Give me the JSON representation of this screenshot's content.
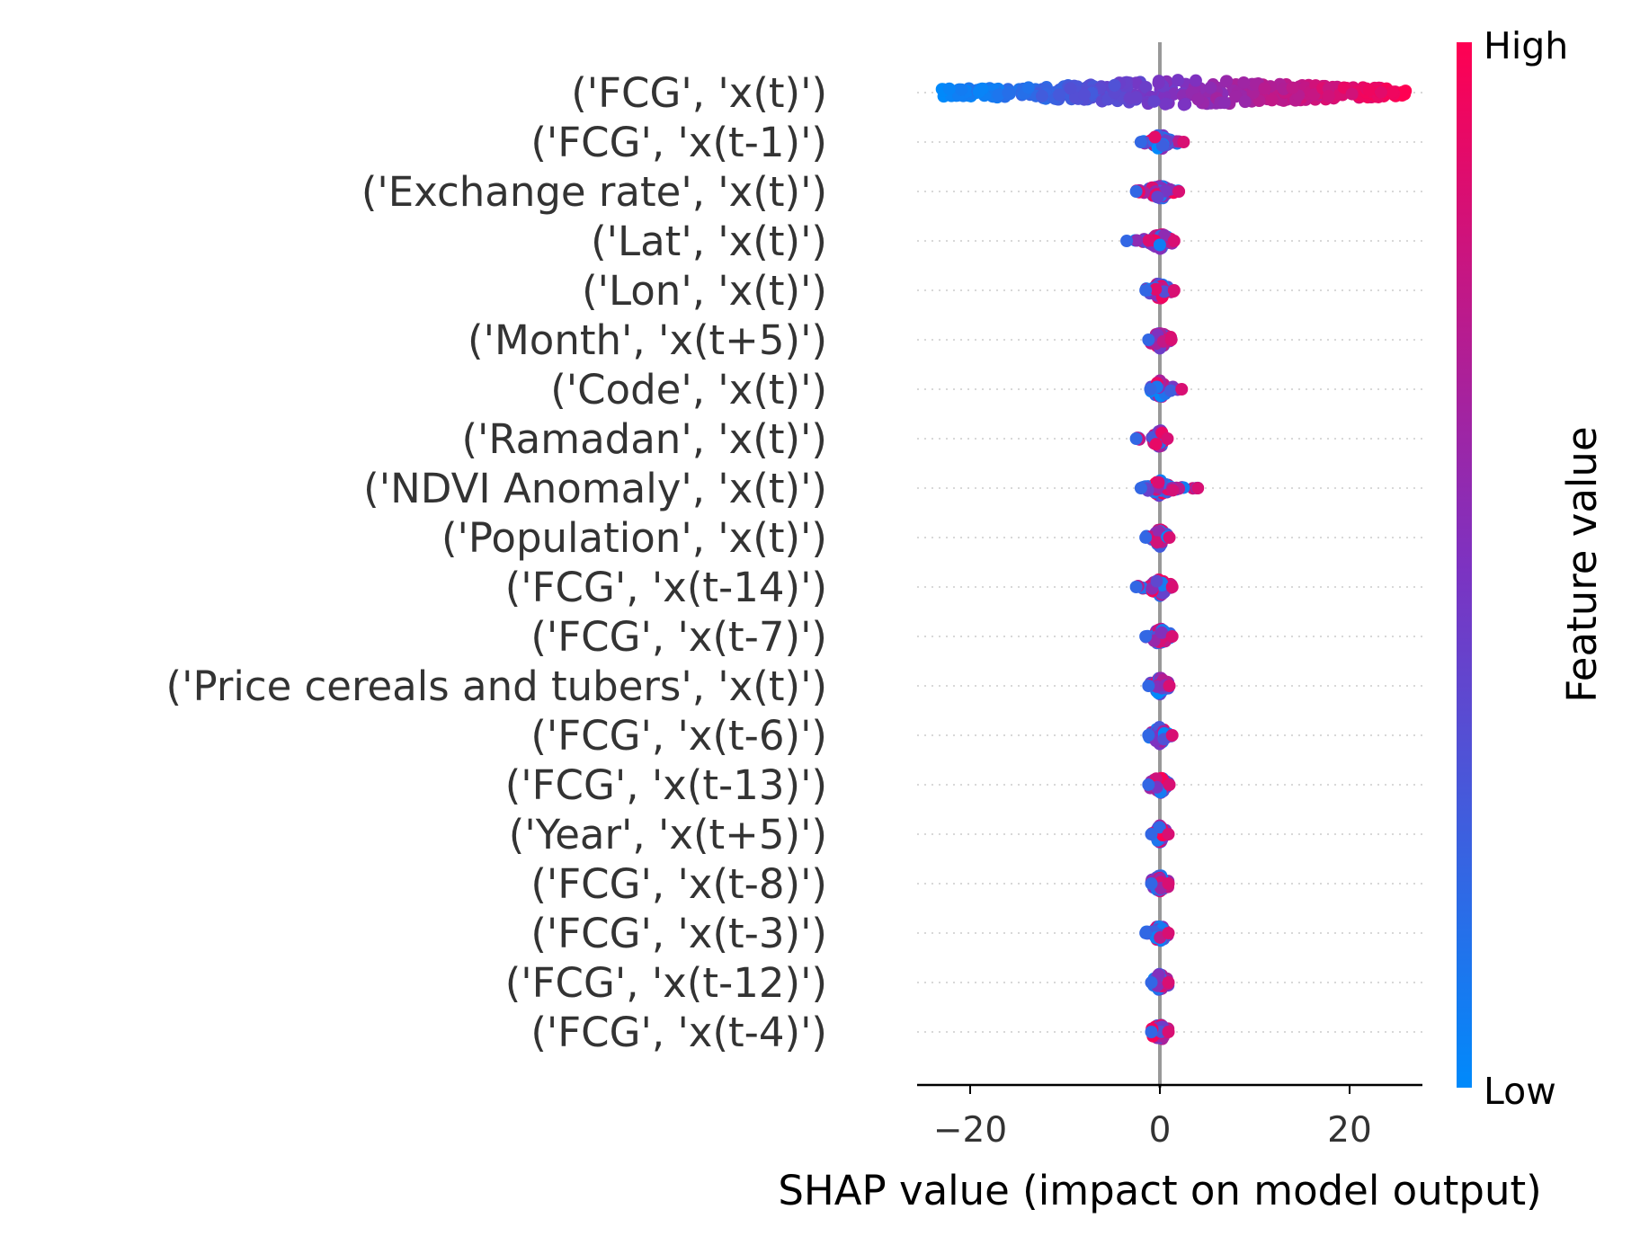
{
  "chart_data": {
    "type": "scatter",
    "subtype": "shap-beeswarm",
    "xlabel": "SHAP value (impact on model output)",
    "xlim": [
      -25.5,
      28
    ],
    "xticks": [
      -20,
      0,
      20
    ],
    "xtick_labels": [
      "−20",
      "0",
      "20"
    ],
    "features": [
      {
        "name": "('FCG', 'x(t)')",
        "min": -23,
        "max": 26
      },
      {
        "name": "('FCG', 'x(t-1)')",
        "min": -2,
        "max": 2.5
      },
      {
        "name": "('Exchange rate', 'x(t)')",
        "min": -2.5,
        "max": 2
      },
      {
        "name": "('Lat', 'x(t)')",
        "min": -3.5,
        "max": 1.5
      },
      {
        "name": "('Lon', 'x(t)')",
        "min": -1.5,
        "max": 1.5
      },
      {
        "name": "('Month', 'x(t+5)')",
        "min": -1.2,
        "max": 1.2
      },
      {
        "name": "('Code', 'x(t)')",
        "min": -1,
        "max": 2.3
      },
      {
        "name": "('Ramadan', 'x(t)')",
        "min": -2.5,
        "max": 0.8
      },
      {
        "name": "('NDVI Anomaly', 'x(t)')",
        "min": -2,
        "max": 4
      },
      {
        "name": "('Population', 'x(t)')",
        "min": -1.5,
        "max": 1
      },
      {
        "name": "('FCG', 'x(t-14)')",
        "min": -2.5,
        "max": 1.3
      },
      {
        "name": "('FCG', 'x(t-7)')",
        "min": -1.5,
        "max": 1.3
      },
      {
        "name": "('Price cereals and tubers', 'x(t)')",
        "min": -1.2,
        "max": 1
      },
      {
        "name": "('FCG', 'x(t-6)')",
        "min": -1.2,
        "max": 1.3
      },
      {
        "name": "('FCG', 'x(t-13)')",
        "min": -1.2,
        "max": 1
      },
      {
        "name": "('Year', 'x(t+5)')",
        "min": -0.9,
        "max": 0.9
      },
      {
        "name": "('FCG', 'x(t-8)')",
        "min": -0.9,
        "max": 0.9
      },
      {
        "name": "('FCG', 'x(t-3)')",
        "min": -1.5,
        "max": 0.9
      },
      {
        "name": "('FCG', 'x(t-12)')",
        "min": -0.9,
        "max": 0.9
      },
      {
        "name": "('FCG', 'x(t-4)')",
        "min": -0.9,
        "max": 0.9
      }
    ],
    "colorbar": {
      "title": "Feature value",
      "high_label": "High",
      "low_label": "Low",
      "colors": {
        "low": "#008afb",
        "mid": "#7d32c1",
        "high": "#ff0052"
      }
    },
    "zero_line_color": "#999999",
    "grid": "dotted horizontal per feature"
  }
}
